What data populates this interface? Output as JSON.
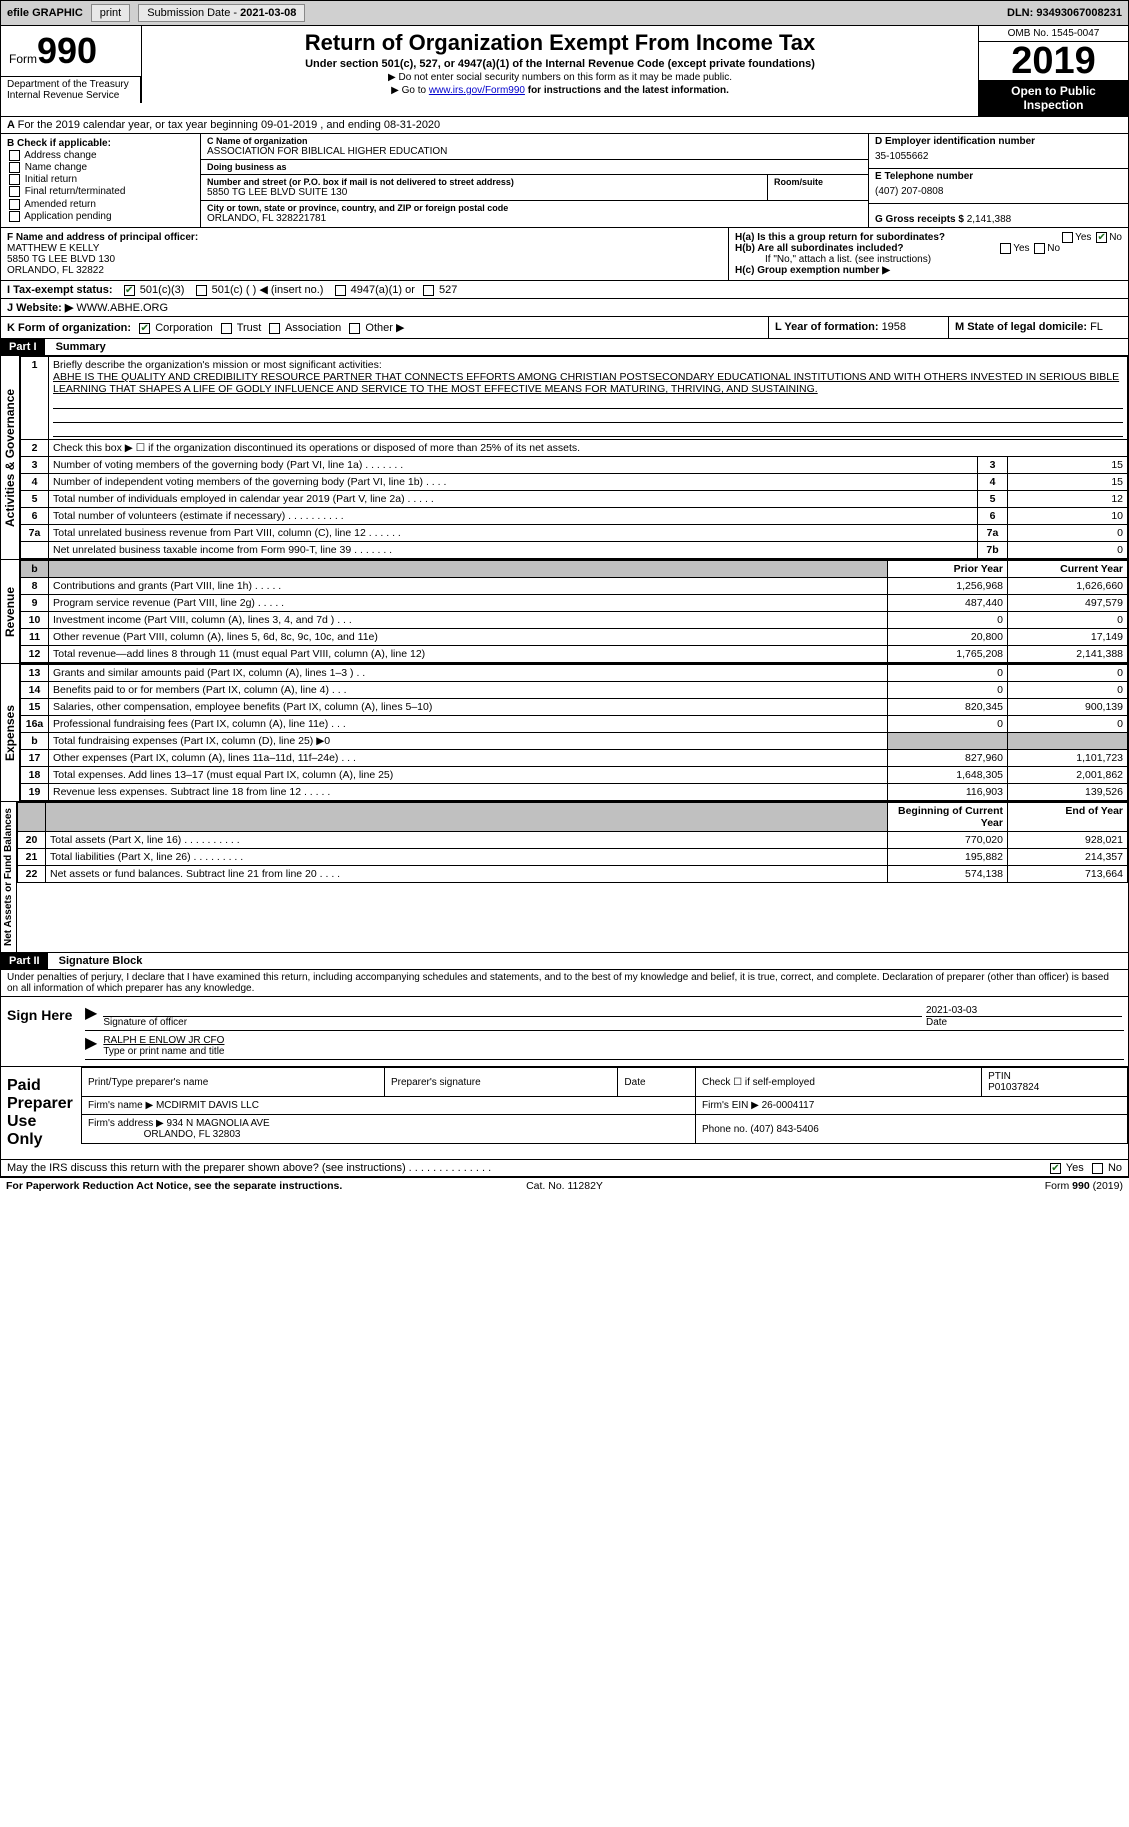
{
  "topbar": {
    "efile": "efile GRAPHIC",
    "print": "print",
    "subdate_lbl": "Submission Date - ",
    "subdate": "2021-03-08",
    "dln_lbl": "DLN: ",
    "dln": "93493067008231"
  },
  "header": {
    "form_word": "Form",
    "form_num": "990",
    "title": "Return of Organization Exempt From Income Tax",
    "subtitle": "Under section 501(c), 527, or 4947(a)(1) of the Internal Revenue Code (except private foundations)",
    "note1": "▶ Do not enter social security numbers on this form as it may be made public.",
    "note2_a": "▶ Go to ",
    "note2_link": "www.irs.gov/Form990",
    "note2_b": " for instructions and the latest information.",
    "omb": "OMB No. 1545-0047",
    "year": "2019",
    "public": "Open to Public Inspection",
    "dept": "Department of the Treasury\nInternal Revenue Service"
  },
  "lineA": "For the 2019 calendar year, or tax year beginning 09-01-2019   , and ending 08-31-2020",
  "boxB": {
    "hdr": "B Check if applicable:",
    "items": [
      "Address change",
      "Name change",
      "Initial return",
      "Final return/terminated",
      "Amended return",
      "Application pending"
    ]
  },
  "boxC": {
    "name_lbl": "C Name of organization",
    "name": "ASSOCIATION FOR BIBLICAL HIGHER EDUCATION",
    "dba_lbl": "Doing business as",
    "dba": "",
    "street_lbl": "Number and street (or P.O. box if mail is not delivered to street address)",
    "room_lbl": "Room/suite",
    "street": "5850 TG LEE BLVD SUITE 130",
    "city_lbl": "City or town, state or province, country, and ZIP or foreign postal code",
    "city": "ORLANDO, FL  328221781"
  },
  "boxD": {
    "lbl": "D Employer identification number",
    "val": "35-1055662"
  },
  "boxE": {
    "lbl": "E Telephone number",
    "val": "(407) 207-0808"
  },
  "boxG": {
    "lbl": "G Gross receipts $ ",
    "val": "2,141,388"
  },
  "boxF": {
    "lbl": "F Name and address of principal officer:",
    "name": "MATTHEW E KELLY",
    "addr1": "5850 TG LEE BLVD 130",
    "addr2": "ORLANDO, FL  32822"
  },
  "boxH": {
    "a_lbl": "H(a)  Is this a group return for subordinates?",
    "b_lbl": "H(b)  Are all subordinates included?",
    "b_note": "If \"No,\" attach a list. (see instructions)",
    "c_lbl": "H(c)  Group exemption number ▶",
    "a_yes": "Yes",
    "a_no": "No"
  },
  "boxI": {
    "lbl": "I  Tax-exempt status:",
    "o1": "501(c)(3)",
    "o2": "501(c) (  ) ◀ (insert no.)",
    "o3": "4947(a)(1) or",
    "o4": "527"
  },
  "boxJ": {
    "lbl": "J  Website: ▶ ",
    "val": "WWW.ABHE.ORG"
  },
  "boxK": {
    "lbl": "K Form of organization:",
    "o1": "Corporation",
    "o2": "Trust",
    "o3": "Association",
    "o4": "Other ▶"
  },
  "boxL": {
    "lbl": "L Year of formation: ",
    "val": "1958"
  },
  "boxM": {
    "lbl": "M State of legal domicile: ",
    "val": "FL"
  },
  "part1": {
    "hdr": "Part I",
    "title": "Summary"
  },
  "p1": {
    "l1": "Briefly describe the organization's mission or most significant activities:",
    "mission": "ABHE IS THE QUALITY AND CREDIBILITY RESOURCE PARTNER THAT CONNECTS EFFORTS AMONG CHRISTIAN POSTSECONDARY EDUCATIONAL INSTITUTIONS AND WITH OTHERS INVESTED IN SERIOUS BIBLE LEARNING THAT SHAPES A LIFE OF GODLY INFLUENCE AND SERVICE TO THE MOST EFFECTIVE MEANS FOR MATURING, THRIVING, AND SUSTAINING.",
    "l2": "Check this box ▶ ☐  if the organization discontinued its operations or disposed of more than 25% of its net assets.",
    "rows_ag": [
      {
        "n": "3",
        "t": "Number of voting members of the governing body (Part VI, line 1a)  .    .    .    .    .    .    .",
        "b": "3",
        "v": "15"
      },
      {
        "n": "4",
        "t": "Number of independent voting members of the governing body (Part VI, line 1b)  .    .    .    .",
        "b": "4",
        "v": "15"
      },
      {
        "n": "5",
        "t": "Total number of individuals employed in calendar year 2019 (Part V, line 2a)  .    .    .    .    .",
        "b": "5",
        "v": "12"
      },
      {
        "n": "6",
        "t": "Total number of volunteers (estimate if necessary)   .    .    .    .    .    .    .    .    .    .",
        "b": "6",
        "v": "10"
      },
      {
        "n": "7a",
        "t": "Total unrelated business revenue from Part VIII, column (C), line 12  .    .    .    .    .    .",
        "b": "7a",
        "v": "0"
      },
      {
        "n": "",
        "t": "Net unrelated business taxable income from Form 990-T, line 39    .    .    .    .    .    .    .",
        "b": "7b",
        "v": "0"
      }
    ],
    "col_prior": "Prior Year",
    "col_current": "Current Year",
    "rows_rev": [
      {
        "n": "8",
        "t": "Contributions and grants (Part VIII, line 1h)   .    .    .    .    .",
        "p": "1,256,968",
        "c": "1,626,660"
      },
      {
        "n": "9",
        "t": "Program service revenue (Part VIII, line 2g)   .    .    .    .    .",
        "p": "487,440",
        "c": "497,579"
      },
      {
        "n": "10",
        "t": "Investment income (Part VIII, column (A), lines 3, 4, and 7d )   .    .    .",
        "p": "0",
        "c": "0"
      },
      {
        "n": "11",
        "t": "Other revenue (Part VIII, column (A), lines 5, 6d, 8c, 9c, 10c, and 11e)",
        "p": "20,800",
        "c": "17,149"
      },
      {
        "n": "12",
        "t": "Total revenue—add lines 8 through 11 (must equal Part VIII, column (A), line 12)",
        "p": "1,765,208",
        "c": "2,141,388"
      }
    ],
    "rows_exp": [
      {
        "n": "13",
        "t": "Grants and similar amounts paid (Part IX, column (A), lines 1–3 )  .    .",
        "p": "0",
        "c": "0"
      },
      {
        "n": "14",
        "t": "Benefits paid to or for members (Part IX, column (A), line 4)  .    .    .",
        "p": "0",
        "c": "0"
      },
      {
        "n": "15",
        "t": "Salaries, other compensation, employee benefits (Part IX, column (A), lines 5–10)",
        "p": "820,345",
        "c": "900,139"
      },
      {
        "n": "16a",
        "t": "Professional fundraising fees (Part IX, column (A), line 11e)  .    .    .",
        "p": "0",
        "c": "0"
      },
      {
        "n": "b",
        "t": "Total fundraising expenses (Part IX, column (D), line 25) ▶0",
        "p": "",
        "c": "",
        "shade": true
      },
      {
        "n": "17",
        "t": "Other expenses (Part IX, column (A), lines 11a–11d, 11f–24e)  .    .    .",
        "p": "827,960",
        "c": "1,101,723"
      },
      {
        "n": "18",
        "t": "Total expenses. Add lines 13–17 (must equal Part IX, column (A), line 25)",
        "p": "1,648,305",
        "c": "2,001,862"
      },
      {
        "n": "19",
        "t": "Revenue less expenses. Subtract line 18 from line 12  .    .    .    .    .",
        "p": "116,903",
        "c": "139,526"
      }
    ],
    "col_begin": "Beginning of Current Year",
    "col_end": "End of Year",
    "rows_na": [
      {
        "n": "20",
        "t": "Total assets (Part X, line 16)  .    .    .    .    .    .    .    .    .    .",
        "p": "770,020",
        "c": "928,021"
      },
      {
        "n": "21",
        "t": "Total liabilities (Part X, line 26)  .    .    .    .    .    .    .    .    .",
        "p": "195,882",
        "c": "214,357"
      },
      {
        "n": "22",
        "t": "Net assets or fund balances. Subtract line 21 from line 20  .    .    .    .",
        "p": "574,138",
        "c": "713,664"
      }
    ],
    "side_ag": "Activities & Governance",
    "side_rev": "Revenue",
    "side_exp": "Expenses",
    "side_na": "Net Assets or Fund Balances"
  },
  "part2": {
    "hdr": "Part II",
    "title": "Signature Block",
    "decl": "Under penalties of perjury, I declare that I have examined this return, including accompanying schedules and statements, and to the best of my knowledge and belief, it is true, correct, and complete. Declaration of preparer (other than officer) is based on all information of which preparer has any knowledge.",
    "sign_here": "Sign Here",
    "sig_officer": "Signature of officer",
    "sig_date": "Date",
    "sig_date_val": "2021-03-03",
    "officer_name": "RALPH E ENLOW JR CFO",
    "type_name": "Type or print name and title",
    "paid": "Paid Preparer Use Only",
    "prep_name_lbl": "Print/Type preparer's name",
    "prep_sig_lbl": "Preparer's signature",
    "date_lbl": "Date",
    "self_lbl": "Check ☐ if self-employed",
    "ptin_lbl": "PTIN",
    "ptin": "P01037824",
    "firm_name_lbl": "Firm's name    ▶ ",
    "firm_name": "MCDIRMIT DAVIS LLC",
    "firm_ein_lbl": "Firm's EIN ▶ ",
    "firm_ein": "26-0004117",
    "firm_addr_lbl": "Firm's address ▶ ",
    "firm_addr1": "934 N MAGNOLIA AVE",
    "firm_addr2": "ORLANDO, FL  32803",
    "phone_lbl": "Phone no. ",
    "phone": "(407) 843-5406",
    "discuss": "May the IRS discuss this return with the preparer shown above? (see instructions)   .    .    .    .    .    .    .    .    .    .    .    .    .    .",
    "yes": "Yes",
    "no": "No"
  },
  "footer": {
    "l": "For Paperwork Reduction Act Notice, see the separate instructions.",
    "c": "Cat. No. 11282Y",
    "r": "Form 990 (2019)"
  }
}
